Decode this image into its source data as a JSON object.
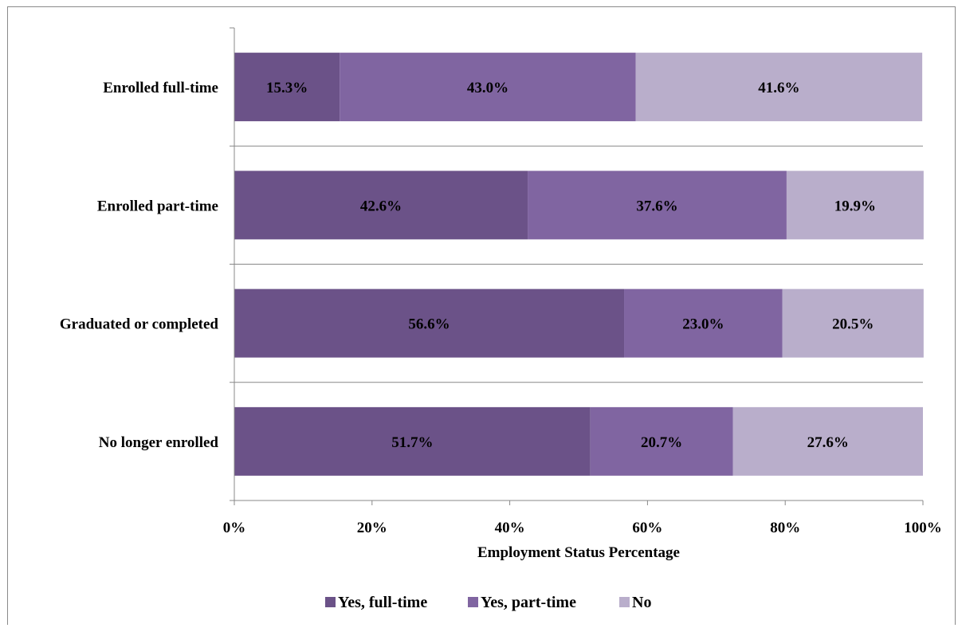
{
  "chart_data": {
    "type": "bar",
    "orientation": "horizontal",
    "stacked": true,
    "title": "",
    "xlabel": "Employment Status Percentage",
    "ylabel": "",
    "xlim": [
      0,
      100
    ],
    "x_ticks": [
      "0%",
      "20%",
      "40%",
      "60%",
      "80%",
      "100%"
    ],
    "categories": [
      "Enrolled full-time",
      "Enrolled part-time",
      "Graduated or completed",
      "No longer enrolled"
    ],
    "series": [
      {
        "name": "Yes, full-time",
        "color": "#6b5288",
        "values": [
          15.3,
          42.6,
          56.6,
          51.7
        ],
        "labels": [
          "15.3%",
          "42.6%",
          "56.6%",
          "51.7%"
        ]
      },
      {
        "name": "Yes, part-time",
        "color": "#8065a1",
        "values": [
          43.0,
          37.6,
          23.0,
          20.7
        ],
        "labels": [
          "43.0%",
          "37.6%",
          "23.0%",
          "20.7%"
        ]
      },
      {
        "name": "No",
        "color": "#b9aecb",
        "values": [
          41.6,
          19.9,
          20.5,
          27.6
        ],
        "labels": [
          "41.6%",
          "19.9%",
          "20.5%",
          "27.6%"
        ]
      }
    ],
    "grid": false,
    "legend_position": "bottom"
  }
}
